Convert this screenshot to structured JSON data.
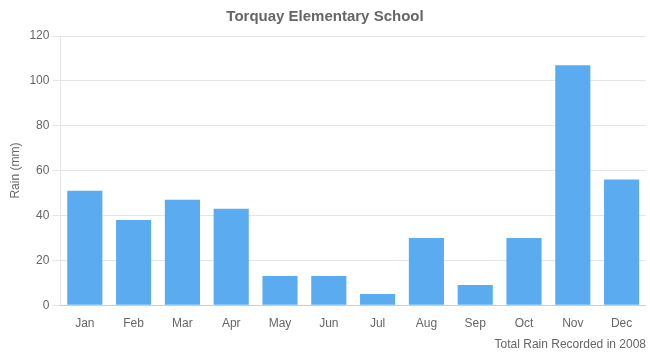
{
  "chart_data": {
    "type": "bar",
    "title": "Torquay Elementary School",
    "xlabel": "Total Rain Recorded in 2008",
    "ylabel": "Rain (mm)",
    "categories": [
      "Jan",
      "Feb",
      "Mar",
      "Apr",
      "May",
      "Jun",
      "Jul",
      "Aug",
      "Sep",
      "Oct",
      "Nov",
      "Dec"
    ],
    "values": [
      51,
      38,
      47,
      43,
      13,
      13,
      5,
      30,
      9,
      30,
      107,
      56
    ],
    "color": "#5aabf0",
    "ylim": [
      0,
      120
    ],
    "yticks": [
      0,
      20,
      40,
      60,
      80,
      100,
      120
    ],
    "grid": true
  }
}
